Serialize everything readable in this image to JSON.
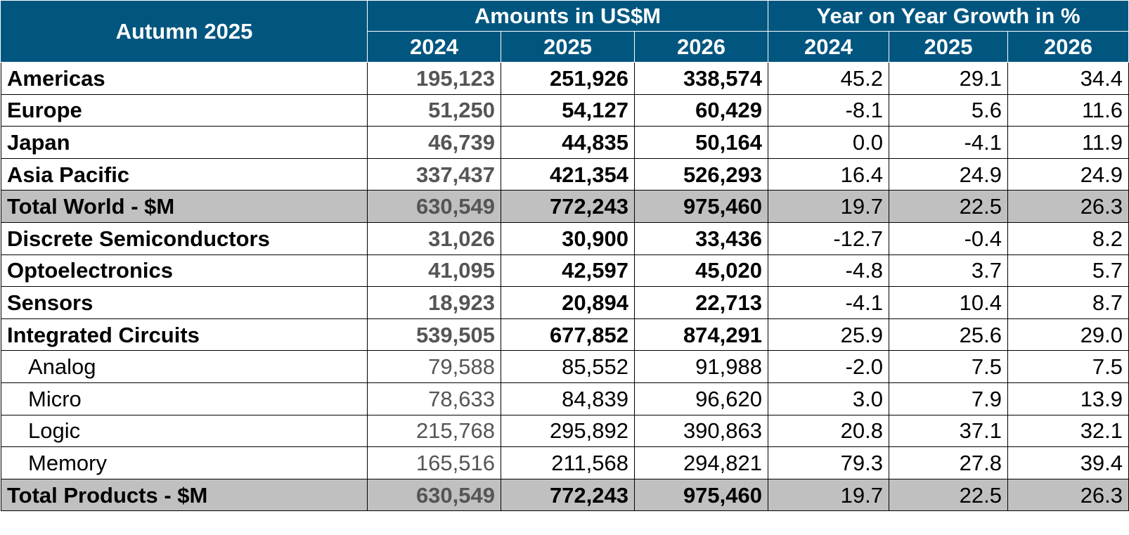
{
  "header": {
    "title": "Autumn 2025",
    "group_amounts": "Amounts in US$M",
    "group_growth": "Year on Year Growth in %",
    "columns": [
      "2024",
      "2025",
      "2026",
      "2024",
      "2025",
      "2026"
    ]
  },
  "table": {
    "rows": [
      [
        "Americas",
        "195,123",
        "251,926",
        "338,574",
        "45.2",
        "29.1",
        "34.4"
      ],
      [
        "Europe",
        "51,250",
        "54,127",
        "60,429",
        "-8.1",
        "5.6",
        "11.6"
      ],
      [
        "Japan",
        "46,739",
        "44,835",
        "50,164",
        "0.0",
        "-4.1",
        "11.9"
      ],
      [
        "Asia Pacific",
        "337,437",
        "421,354",
        "526,293",
        "16.4",
        "24.9",
        "24.9"
      ],
      [
        "Total World - $M",
        "630,549",
        "772,243",
        "975,460",
        "19.7",
        "22.5",
        "26.3"
      ],
      [
        "Discrete Semiconductors",
        "31,026",
        "30,900",
        "33,436",
        "-12.7",
        "-0.4",
        "8.2"
      ],
      [
        "Optoelectronics",
        "41,095",
        "42,597",
        "45,020",
        "-4.8",
        "3.7",
        "5.7"
      ],
      [
        "Sensors",
        "18,923",
        "20,894",
        "22,713",
        "-4.1",
        "10.4",
        "8.7"
      ],
      [
        "Integrated Circuits",
        "539,505",
        "677,852",
        "874,291",
        "25.9",
        "25.6",
        "29.0"
      ],
      [
        "Analog",
        "79,588",
        "85,552",
        "91,988",
        "-2.0",
        "7.5",
        "7.5"
      ],
      [
        "Micro",
        "78,633",
        "84,839",
        "96,620",
        "3.0",
        "7.9",
        "13.9"
      ],
      [
        "Logic",
        "215,768",
        "295,892",
        "390,863",
        "20.8",
        "37.1",
        "32.1"
      ],
      [
        "Memory",
        "165,516",
        "211,568",
        "294,821",
        "79.3",
        "27.8",
        "39.4"
      ],
      [
        "Total Products - $M",
        "630,549",
        "772,243",
        "975,460",
        "19.7",
        "22.5",
        "26.3"
      ]
    ]
  }
}
